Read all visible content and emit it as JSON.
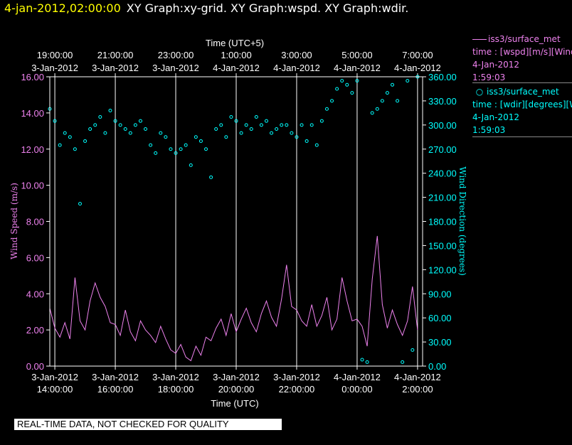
{
  "header": {
    "time": "4-jan-2012,02:00:00",
    "titles": "XY Graph:xy-grid.  XY Graph:wspd.  XY Graph:wdir."
  },
  "footer": {
    "quality_note": "REAL-TIME DATA, NOT CHECKED FOR QUALITY"
  },
  "legend": {
    "wspd": {
      "name": "iss3/surface_met",
      "var": "time : [wspd][m/s][Wind",
      "date": "4-Jan-2012",
      "time": "1:59:03"
    },
    "wdir": {
      "name": "iss3/surface_met",
      "var": "time : [wdir][degrees][W",
      "date": "4-Jan-2012",
      "time": "1:59:03"
    }
  },
  "colors": {
    "wspd": "#ee82ee",
    "wdir": "#00ffff",
    "axes": "#ffffff",
    "grid": "#ffffff",
    "time_header": "#ffff00"
  },
  "chart_data": {
    "type": "scatter",
    "xlabel_top": "Time (UTC+5)",
    "xlabel_bottom": "Time (UTC)",
    "ylabel_left": "Wind Speed (m/s)",
    "ylabel_right": "Wind Direction (degrees)",
    "xlim": [
      "2012-01-03T13:50",
      "2012-01-04T02:10"
    ],
    "ylim_left": [
      0,
      16
    ],
    "ylim_right": [
      0,
      360
    ],
    "grid": "vertical at each 2-hour tick",
    "legend_placement": "right",
    "x_ticks_bottom": [
      {
        "t": "2012-01-03T14:00",
        "date": "3-Jan-2012",
        "time": "14:00:00"
      },
      {
        "t": "2012-01-03T16:00",
        "date": "3-Jan-2012",
        "time": "16:00:00"
      },
      {
        "t": "2012-01-03T18:00",
        "date": "3-Jan-2012",
        "time": "18:00:00"
      },
      {
        "t": "2012-01-03T20:00",
        "date": "3-Jan-2012",
        "time": "20:00:00"
      },
      {
        "t": "2012-01-03T22:00",
        "date": "3-Jan-2012",
        "time": "22:00:00"
      },
      {
        "t": "2012-01-04T00:00",
        "date": "4-Jan-2012",
        "time": "0:00:00"
      },
      {
        "t": "2012-01-04T02:00",
        "date": "4-Jan-2012",
        "time": "2:00:00"
      }
    ],
    "x_ticks_top": [
      {
        "t": "2012-01-03T14:00",
        "time": "19:00:00",
        "date": "3-Jan-2012"
      },
      {
        "t": "2012-01-03T16:00",
        "time": "21:00:00",
        "date": "3-Jan-2012"
      },
      {
        "t": "2012-01-03T18:00",
        "time": "23:00:00",
        "date": "3-Jan-2012"
      },
      {
        "t": "2012-01-03T20:00",
        "time": "1:00:00",
        "date": "4-Jan-2012"
      },
      {
        "t": "2012-01-03T22:00",
        "time": "3:00:00",
        "date": "4-Jan-2012"
      },
      {
        "t": "2012-01-04T00:00",
        "time": "5:00:00",
        "date": "4-Jan-2012"
      },
      {
        "t": "2012-01-04T02:00",
        "time": "7:00:00",
        "date": "4-Jan-2012"
      }
    ],
    "y_ticks_left": [
      "0.00",
      "2.00",
      "4.00",
      "6.00",
      "8.00",
      "10.00",
      "12.00",
      "14.00",
      "16.00"
    ],
    "y_ticks_right": [
      "0.00",
      "30.00",
      "60.00",
      "90.00",
      "120.00",
      "150.00",
      "180.00",
      "210.00",
      "240.00",
      "270.00",
      "300.00",
      "330.00",
      "360.00"
    ],
    "series": [
      {
        "name": "wspd",
        "style": "line",
        "axis": "left",
        "x": [
          "2012-01-03T13:50",
          "2012-01-03T14:00",
          "2012-01-03T14:10",
          "2012-01-03T14:20",
          "2012-01-03T14:30",
          "2012-01-03T14:40",
          "2012-01-03T14:50",
          "2012-01-03T15:00",
          "2012-01-03T15:10",
          "2012-01-03T15:20",
          "2012-01-03T15:30",
          "2012-01-03T15:40",
          "2012-01-03T15:50",
          "2012-01-03T16:00",
          "2012-01-03T16:10",
          "2012-01-03T16:20",
          "2012-01-03T16:30",
          "2012-01-03T16:40",
          "2012-01-03T16:50",
          "2012-01-03T17:00",
          "2012-01-03T17:10",
          "2012-01-03T17:20",
          "2012-01-03T17:30",
          "2012-01-03T17:40",
          "2012-01-03T17:50",
          "2012-01-03T18:00",
          "2012-01-03T18:10",
          "2012-01-03T18:20",
          "2012-01-03T18:30",
          "2012-01-03T18:40",
          "2012-01-03T18:50",
          "2012-01-03T19:00",
          "2012-01-03T19:10",
          "2012-01-03T19:20",
          "2012-01-03T19:30",
          "2012-01-03T19:40",
          "2012-01-03T19:50",
          "2012-01-03T20:00",
          "2012-01-03T20:10",
          "2012-01-03T20:20",
          "2012-01-03T20:30",
          "2012-01-03T20:40",
          "2012-01-03T20:50",
          "2012-01-03T21:00",
          "2012-01-03T21:10",
          "2012-01-03T21:20",
          "2012-01-03T21:30",
          "2012-01-03T21:40",
          "2012-01-03T21:50",
          "2012-01-03T22:00",
          "2012-01-03T22:10",
          "2012-01-03T22:20",
          "2012-01-03T22:30",
          "2012-01-03T22:40",
          "2012-01-03T22:50",
          "2012-01-03T23:00",
          "2012-01-03T23:10",
          "2012-01-03T23:20",
          "2012-01-03T23:30",
          "2012-01-03T23:40",
          "2012-01-03T23:50",
          "2012-01-04T00:00",
          "2012-01-04T00:10",
          "2012-01-04T00:20",
          "2012-01-04T00:30",
          "2012-01-04T00:40",
          "2012-01-04T00:50",
          "2012-01-04T01:00",
          "2012-01-04T01:10",
          "2012-01-04T01:20",
          "2012-01-04T01:30",
          "2012-01-04T01:40",
          "2012-01-04T01:50",
          "2012-01-04T02:00"
        ],
        "values": [
          3.2,
          2.1,
          1.6,
          2.4,
          1.5,
          4.9,
          2.5,
          2.0,
          3.6,
          4.6,
          3.8,
          3.3,
          2.4,
          2.3,
          1.7,
          3.1,
          1.9,
          1.4,
          2.5,
          2.0,
          1.7,
          1.3,
          2.2,
          1.5,
          0.9,
          0.7,
          1.2,
          0.5,
          0.3,
          1.1,
          0.6,
          1.6,
          1.4,
          2.1,
          2.6,
          1.7,
          2.9,
          1.9,
          2.6,
          3.2,
          2.4,
          1.9,
          2.9,
          3.6,
          2.7,
          2.2,
          3.7,
          5.6,
          3.3,
          3.1,
          2.5,
          2.2,
          3.4,
          2.2,
          2.8,
          3.8,
          2.0,
          2.6,
          4.9,
          3.6,
          2.5,
          2.6,
          2.2,
          1.1,
          4.8,
          7.2,
          3.4,
          2.1,
          3.1,
          2.3,
          1.7,
          2.5,
          4.4,
          2.0
        ]
      },
      {
        "name": "wdir",
        "style": "markers",
        "axis": "right",
        "x": [
          "2012-01-03T13:50",
          "2012-01-03T14:00",
          "2012-01-03T14:10",
          "2012-01-03T14:20",
          "2012-01-03T14:30",
          "2012-01-03T14:40",
          "2012-01-03T14:50",
          "2012-01-03T15:00",
          "2012-01-03T15:10",
          "2012-01-03T15:20",
          "2012-01-03T15:30",
          "2012-01-03T15:40",
          "2012-01-03T15:50",
          "2012-01-03T16:00",
          "2012-01-03T16:10",
          "2012-01-03T16:20",
          "2012-01-03T16:30",
          "2012-01-03T16:40",
          "2012-01-03T16:50",
          "2012-01-03T17:00",
          "2012-01-03T17:10",
          "2012-01-03T17:20",
          "2012-01-03T17:30",
          "2012-01-03T17:40",
          "2012-01-03T17:50",
          "2012-01-03T18:00",
          "2012-01-03T18:10",
          "2012-01-03T18:20",
          "2012-01-03T18:30",
          "2012-01-03T18:40",
          "2012-01-03T18:50",
          "2012-01-03T19:00",
          "2012-01-03T19:10",
          "2012-01-03T19:20",
          "2012-01-03T19:30",
          "2012-01-03T19:40",
          "2012-01-03T19:50",
          "2012-01-03T20:00",
          "2012-01-03T20:10",
          "2012-01-03T20:20",
          "2012-01-03T20:30",
          "2012-01-03T20:40",
          "2012-01-03T20:50",
          "2012-01-03T21:00",
          "2012-01-03T21:10",
          "2012-01-03T21:20",
          "2012-01-03T21:30",
          "2012-01-03T21:40",
          "2012-01-03T21:50",
          "2012-01-03T22:00",
          "2012-01-03T22:10",
          "2012-01-03T22:20",
          "2012-01-03T22:30",
          "2012-01-03T22:40",
          "2012-01-03T22:50",
          "2012-01-03T23:00",
          "2012-01-03T23:10",
          "2012-01-03T23:20",
          "2012-01-03T23:30",
          "2012-01-03T23:40",
          "2012-01-03T23:50",
          "2012-01-04T00:00",
          "2012-01-04T00:10",
          "2012-01-04T00:20",
          "2012-01-04T00:30",
          "2012-01-04T00:40",
          "2012-01-04T00:50",
          "2012-01-04T01:00",
          "2012-01-04T01:10",
          "2012-01-04T01:20",
          "2012-01-04T01:30",
          "2012-01-04T01:40",
          "2012-01-04T01:50",
          "2012-01-04T02:00"
        ],
        "values": [
          320,
          305,
          275,
          290,
          285,
          270,
          202,
          280,
          295,
          300,
          310,
          290,
          318,
          305,
          300,
          295,
          290,
          300,
          305,
          295,
          275,
          265,
          290,
          285,
          270,
          265,
          270,
          275,
          250,
          285,
          280,
          270,
          235,
          295,
          300,
          285,
          310,
          305,
          290,
          300,
          295,
          310,
          300,
          305,
          290,
          295,
          300,
          300,
          290,
          285,
          300,
          280,
          300,
          275,
          305,
          320,
          330,
          345,
          355,
          350,
          340,
          355,
          8,
          5,
          315,
          320,
          330,
          340,
          350,
          330,
          5,
          355,
          20,
          360
        ]
      }
    ]
  }
}
